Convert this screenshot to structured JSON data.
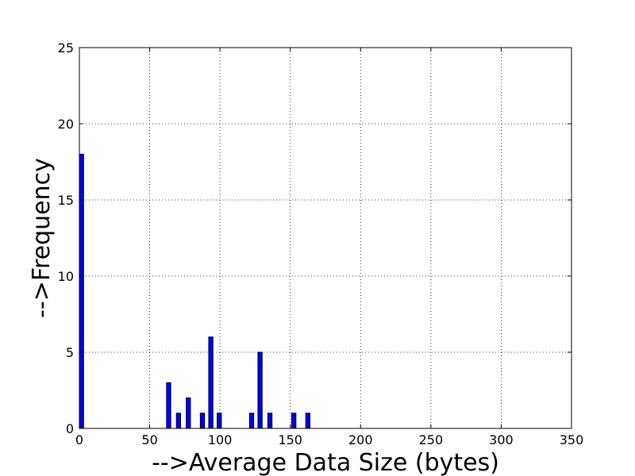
{
  "chart_data": {
    "type": "bar",
    "xlabel": "-->Average Data Size (bytes)",
    "ylabel": "-->Frequency",
    "xlim": [
      0,
      350
    ],
    "ylim": [
      0,
      25
    ],
    "xticks": [
      0,
      50,
      100,
      150,
      200,
      250,
      300,
      350
    ],
    "yticks": [
      0,
      5,
      10,
      15,
      20,
      25
    ],
    "xtick_labels": [
      "0",
      "50",
      "100",
      "150",
      "200",
      "250",
      "300",
      "350"
    ],
    "ytick_labels": [
      "0",
      "5",
      "10",
      "15",
      "20",
      "25"
    ],
    "grid": true,
    "bar_color": "#0000ff",
    "bar_width": 3,
    "bars": [
      {
        "x": 0,
        "value": 18
      },
      {
        "x": 62,
        "value": 3
      },
      {
        "x": 69,
        "value": 1
      },
      {
        "x": 76,
        "value": 2
      },
      {
        "x": 86,
        "value": 1
      },
      {
        "x": 92,
        "value": 6
      },
      {
        "x": 98,
        "value": 1
      },
      {
        "x": 121,
        "value": 1
      },
      {
        "x": 127,
        "value": 5
      },
      {
        "x": 134,
        "value": 1
      },
      {
        "x": 151,
        "value": 1
      },
      {
        "x": 161,
        "value": 1
      }
    ]
  }
}
